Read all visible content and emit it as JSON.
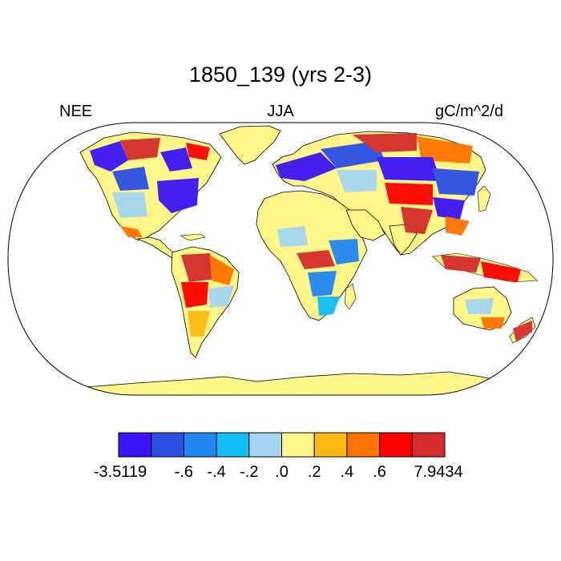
{
  "title": "1850_139 (yrs 2-3)",
  "left_string": "NEE",
  "center_string": "JJA",
  "right_string": "gC/m^2/d",
  "colorbar": {
    "colors": [
      "#3a14f4",
      "#2c4fe4",
      "#2087f2",
      "#13bdf7",
      "#a6d5f1",
      "#fff68a",
      "#ffbb13",
      "#ff7300",
      "#ff0000",
      "#d42c2c"
    ],
    "labels": [
      "-3.5119",
      "-.6",
      "-.4",
      "-.2",
      ".0",
      ".2",
      ".4",
      ".6",
      "7.9434"
    ]
  },
  "land_color": "#fff68a",
  "ocean_color": "#ffffff"
}
